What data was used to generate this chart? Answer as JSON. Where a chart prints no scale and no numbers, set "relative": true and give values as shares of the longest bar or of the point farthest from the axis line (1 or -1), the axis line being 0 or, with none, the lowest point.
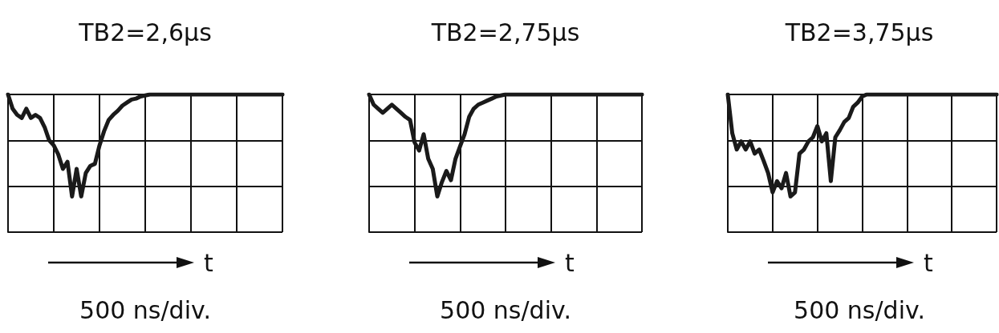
{
  "chart_data": [
    {
      "type": "line",
      "title": "TB2=2,6µs",
      "xlabel": "t",
      "annotations": [
        "500 ns/div."
      ],
      "relative": true,
      "grid": true,
      "marker": "none",
      "line_style": "solid",
      "categories": [
        null,
        null,
        null,
        null,
        null,
        null,
        null,
        null,
        null,
        null,
        null,
        null,
        null,
        null,
        null,
        null,
        null,
        null,
        null,
        null,
        null,
        null,
        null,
        null,
        null,
        null,
        null,
        null,
        null,
        null,
        null,
        null,
        null,
        null,
        null,
        null,
        null,
        null,
        null,
        null,
        null,
        null,
        null,
        null,
        null,
        null,
        null,
        null,
        null,
        null,
        null,
        null,
        null,
        null,
        null,
        null,
        null,
        null,
        null,
        null,
        null
      ],
      "series": [
        {
          "color": "#1a1a1a",
          "values": [
            0,
            -0.14,
            -0.2,
            -0.23,
            -0.14,
            -0.23,
            -0.2,
            -0.23,
            -0.32,
            -0.45,
            -0.5,
            -0.59,
            -0.73,
            -0.66,
            -1,
            -0.73,
            -1,
            -0.77,
            -0.7,
            -0.68,
            -0.5,
            -0.36,
            -0.25,
            -0.2,
            -0.16,
            -0.11,
            -0.08,
            -0.05,
            -0.04,
            -0.02,
            -0.01,
            0,
            0,
            0,
            0,
            0,
            0,
            0,
            0,
            0,
            0,
            0,
            0,
            0,
            0,
            0,
            0,
            0,
            0,
            0,
            0,
            0,
            0,
            0,
            0,
            0,
            0,
            0,
            0,
            0,
            0
          ]
        }
      ]
    },
    {
      "type": "line",
      "title": "TB2=2,75µs",
      "xlabel": "t",
      "annotations": [
        "500 ns/div."
      ],
      "relative": true,
      "grid": true,
      "marker": "none",
      "line_style": "solid",
      "categories": [
        null,
        null,
        null,
        null,
        null,
        null,
        null,
        null,
        null,
        null,
        null,
        null,
        null,
        null,
        null,
        null,
        null,
        null,
        null,
        null,
        null,
        null,
        null,
        null,
        null,
        null,
        null,
        null,
        null,
        null,
        null,
        null,
        null,
        null,
        null,
        null,
        null,
        null,
        null,
        null,
        null,
        null,
        null,
        null,
        null,
        null,
        null,
        null,
        null,
        null,
        null,
        null,
        null,
        null,
        null,
        null,
        null,
        null,
        null,
        null,
        null
      ],
      "series": [
        {
          "color": "#1a1a1a",
          "values": [
            0,
            -0.1,
            -0.14,
            -0.18,
            -0.14,
            -0.1,
            -0.14,
            -0.18,
            -0.22,
            -0.25,
            -0.47,
            -0.55,
            -0.39,
            -0.63,
            -0.73,
            -1,
            -0.86,
            -0.75,
            -0.84,
            -0.63,
            -0.51,
            -0.39,
            -0.22,
            -0.14,
            -0.1,
            -0.08,
            -0.06,
            -0.04,
            -0.02,
            -0.01,
            0,
            0,
            0,
            0,
            0,
            0,
            0,
            0,
            0,
            0,
            0,
            0,
            0,
            0,
            0,
            0,
            0,
            0,
            0,
            0,
            0,
            0,
            0,
            0,
            0,
            0,
            0,
            0,
            0,
            0,
            0
          ]
        }
      ]
    },
    {
      "type": "line",
      "title": "TB2=3,75µs",
      "xlabel": "t",
      "annotations": [
        "500 ns/div."
      ],
      "relative": true,
      "grid": true,
      "marker": "none",
      "line_style": "solid",
      "categories": [
        null,
        null,
        null,
        null,
        null,
        null,
        null,
        null,
        null,
        null,
        null,
        null,
        null,
        null,
        null,
        null,
        null,
        null,
        null,
        null,
        null,
        null,
        null,
        null,
        null,
        null,
        null,
        null,
        null,
        null,
        null,
        null,
        null,
        null,
        null,
        null,
        null,
        null,
        null,
        null,
        null,
        null,
        null,
        null,
        null,
        null,
        null,
        null,
        null,
        null,
        null,
        null,
        null,
        null,
        null,
        null,
        null,
        null,
        null,
        null,
        null
      ],
      "series": [
        {
          "color": "#1a1a1a",
          "values": [
            0,
            -0.38,
            -0.54,
            -0.46,
            -0.54,
            -0.46,
            -0.58,
            -0.54,
            -0.65,
            -0.77,
            -0.96,
            -0.85,
            -0.92,
            -0.77,
            -1,
            -0.96,
            -0.58,
            -0.54,
            -0.46,
            -0.42,
            -0.31,
            -0.46,
            -0.38,
            -0.85,
            -0.42,
            -0.35,
            -0.27,
            -0.23,
            -0.12,
            -0.08,
            -0.02,
            0,
            0,
            0,
            0,
            0,
            0,
            0,
            0,
            0,
            0,
            0,
            0,
            0,
            0,
            0,
            0,
            0,
            0,
            0,
            0,
            0,
            0,
            0,
            0,
            0,
            0,
            0,
            0,
            0,
            0
          ]
        }
      ]
    }
  ]
}
